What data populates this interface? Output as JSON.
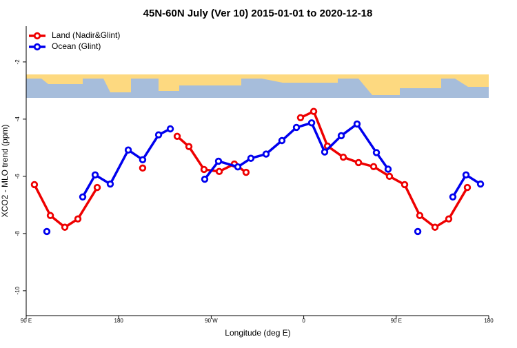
{
  "chart_data": {
    "type": "line",
    "title": "45N-60N July (Ver 10)   2015-01-01 to 2020-12-18",
    "x_label": "Longitude (deg E)",
    "y_label": "XCO2 - MLO trend (ppm)",
    "xlim": [
      90,
      540
    ],
    "ylim": [
      -10.87,
      -0.75
    ],
    "xticks": [
      {
        "value": 90,
        "label": "90 E"
      },
      180,
      {
        "value": 270,
        "label": "90 W"
      },
      {
        "value": 360,
        "label": "0"
      },
      {
        "value": 450,
        "label": "90 E"
      },
      {
        "value": 540,
        "label": "180"
      }
    ],
    "yticks": [
      -2,
      -4,
      -6,
      -8,
      -10
    ],
    "legend": "top-left",
    "series": [
      {
        "name": "Land (Nadir&Glint)",
        "color": "#ee0000",
        "x": [
          98,
          113.5,
          127.6,
          140.3,
          159.1,
          null,
          203.3,
          null,
          236.9,
          248.3,
          263.0,
          277.8,
          292.5,
          303.9,
          null,
          356.9,
          369.7,
          383.1,
          398.5,
          413.3,
          428.0,
          443.4,
          458.2,
          472.9,
          487.7,
          501.1,
          519.2
        ],
        "values": [
          -6.29,
          -7.37,
          -7.78,
          -7.49,
          -6.39,
          null,
          -5.71,
          null,
          -4.6,
          -4.96,
          -5.76,
          -5.83,
          -5.57,
          -5.86,
          null,
          -3.95,
          -3.73,
          -4.94,
          -5.33,
          -5.52,
          -5.66,
          -6.0,
          -6.29,
          -7.37,
          -7.78,
          -7.49,
          -6.39
        ]
      },
      {
        "name": "Ocean (Glint)",
        "color": "#0000ee",
        "x": [
          110.1,
          null,
          145.0,
          157.1,
          171.8,
          189.3,
          203.3,
          218.8,
          230.2,
          null,
          263.7,
          277.1,
          295.9,
          308.6,
          323.4,
          338.8,
          352.9,
          367.7,
          380.4,
          396.5,
          411.9,
          430.7,
          442.1,
          null,
          471.0,
          null,
          505.1,
          517.9,
          532.0
        ],
        "values": [
          -7.93,
          null,
          -6.72,
          -5.95,
          -6.27,
          -5.08,
          -5.42,
          -4.55,
          -4.34,
          null,
          -6.1,
          -5.47,
          -5.67,
          -5.37,
          -5.22,
          -4.75,
          -4.29,
          -4.13,
          -5.15,
          -4.58,
          -4.17,
          -5.17,
          -5.75,
          null,
          -7.93,
          null,
          -6.72,
          -5.95,
          -6.27
        ]
      }
    ]
  }
}
